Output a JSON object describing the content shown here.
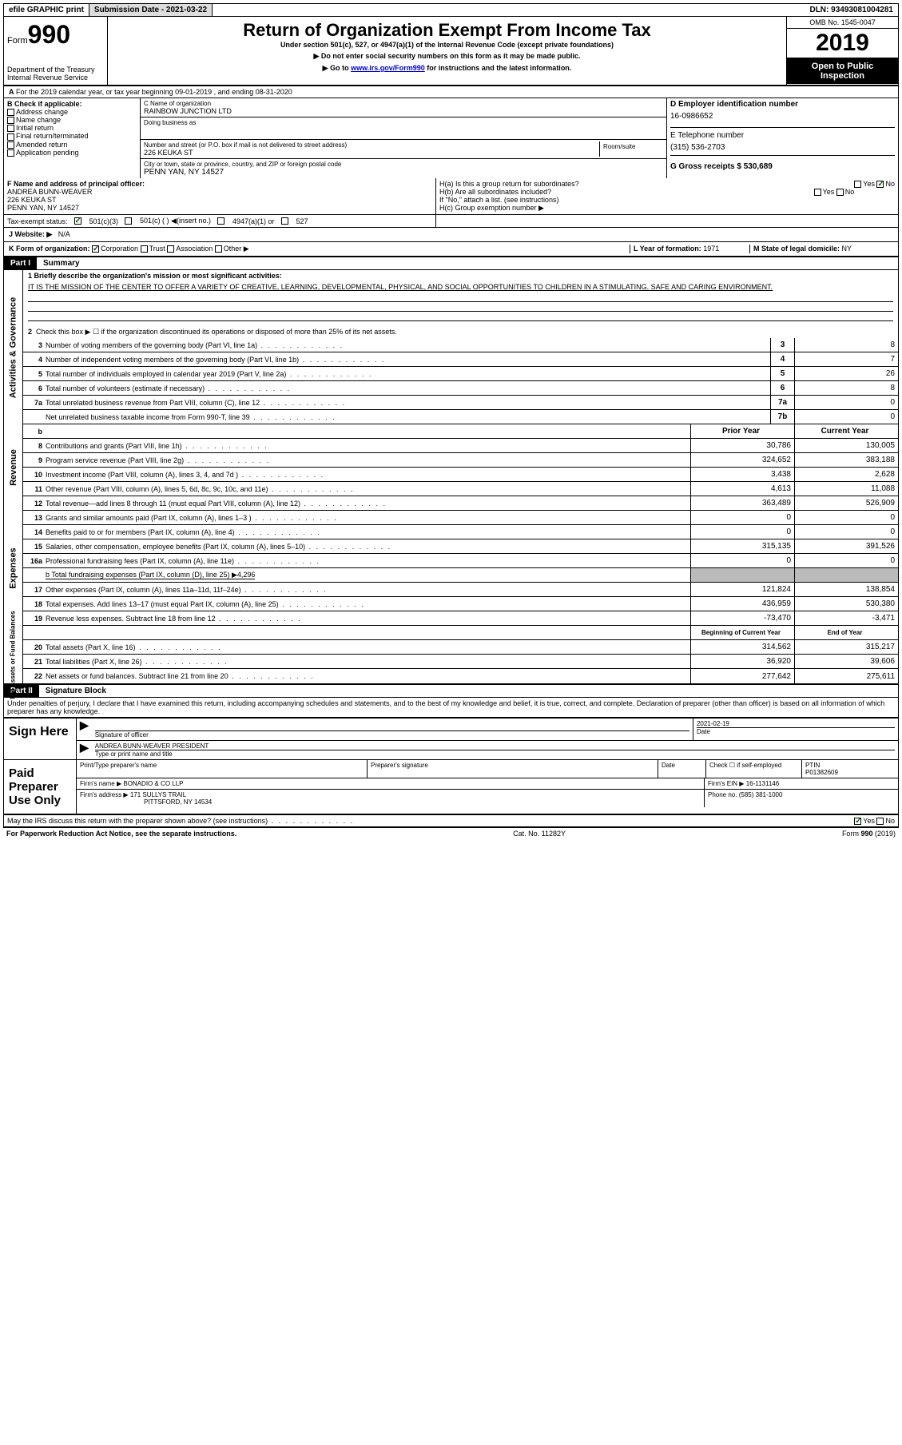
{
  "top": {
    "efile": "efile GRAPHIC print",
    "submission": "Submission Date - 2021-03-22",
    "dln": "DLN: 93493081004281"
  },
  "header": {
    "form_label": "Form",
    "form_num": "990",
    "dept": "Department of the Treasury",
    "irs": "Internal Revenue Service",
    "title": "Return of Organization Exempt From Income Tax",
    "sub1": "Under section 501(c), 527, or 4947(a)(1) of the Internal Revenue Code (except private foundations)",
    "sub2": "▶ Do not enter social security numbers on this form as it may be made public.",
    "sub3_a": "▶ Go to ",
    "sub3_link": "www.irs.gov/Form990",
    "sub3_b": " for instructions and the latest information.",
    "omb": "OMB No. 1545-0047",
    "year": "2019",
    "open": "Open to Public Inspection"
  },
  "line_a": "For the 2019 calendar year, or tax year beginning 09-01-2019    , and ending 08-31-2020",
  "box_b": {
    "title": "B Check if applicable:",
    "opts": [
      "Address change",
      "Name change",
      "Initial return",
      "Final return/terminated",
      "Amended return",
      "Application pending"
    ]
  },
  "box_c": {
    "name_lbl": "C Name of organization",
    "name": "RAINBOW JUNCTION LTD",
    "dba_lbl": "Doing business as",
    "addr_lbl": "Number and street (or P.O. box if mail is not delivered to street address)",
    "room_lbl": "Room/suite",
    "addr": "226 KEUKA ST",
    "city_lbl": "City or town, state or province, country, and ZIP or foreign postal code",
    "city": "PENN YAN, NY  14527"
  },
  "box_d": {
    "lbl": "D Employer identification number",
    "val": "16-0986652"
  },
  "box_e": {
    "lbl": "E Telephone number",
    "val": "(315) 536-2703"
  },
  "box_g": {
    "lbl": "G Gross receipts $",
    "val": "530,689"
  },
  "box_f": {
    "lbl": "F  Name and address of principal officer:",
    "name": "ANDREA BUNN-WEAVER",
    "addr1": "226 KEUKA ST",
    "addr2": "PENN YAN, NY  14527"
  },
  "box_h": {
    "ha": "H(a)  Is this a group return for subordinates?",
    "hb": "H(b)  Are all subordinates included?",
    "hb_note": "If \"No,\" attach a list. (see instructions)",
    "hc": "H(c)  Group exemption number ▶"
  },
  "tax_status": {
    "lbl": "Tax-exempt status:",
    "o1": "501(c)(3)",
    "o2": "501(c) (  ) ◀(insert no.)",
    "o3": "4947(a)(1) or",
    "o4": "527"
  },
  "box_j": {
    "lbl": "J   Website: ▶",
    "val": "N/A"
  },
  "box_k": "K Form of organization:",
  "k_opts": [
    "Corporation",
    "Trust",
    "Association",
    "Other ▶"
  ],
  "box_l": {
    "lbl": "L Year of formation:",
    "val": "1971"
  },
  "box_m": {
    "lbl": "M State of legal domicile:",
    "val": "NY"
  },
  "part1": {
    "hdr": "Part I",
    "title": "Summary"
  },
  "mission": {
    "lbl": "1   Briefly describe the organization's mission or most significant activities:",
    "txt": "IT IS THE MISSION OF THE CENTER TO OFFER A VARIETY OF CREATIVE, LEARNING, DEVELOPMENTAL, PHYSICAL, AND SOCIAL OPPORTUNITIES TO CHILDREN IN A STIMULATING, SAFE AND CARING ENVIRONMENT."
  },
  "line2": "Check this box ▶ ☐  if the organization discontinued its operations or disposed of more than 25% of its net assets.",
  "sections": {
    "ag": "Activities & Governance",
    "rev": "Revenue",
    "exp": "Expenses",
    "na": "Net Assets or Fund Balances"
  },
  "ag_lines": [
    {
      "n": "3",
      "t": "Number of voting members of the governing body (Part VI, line 1a)",
      "b": "3",
      "v": "8"
    },
    {
      "n": "4",
      "t": "Number of independent voting members of the governing body (Part VI, line 1b)",
      "b": "4",
      "v": "7"
    },
    {
      "n": "5",
      "t": "Total number of individuals employed in calendar year 2019 (Part V, line 2a)",
      "b": "5",
      "v": "26"
    },
    {
      "n": "6",
      "t": "Total number of volunteers (estimate if necessary)",
      "b": "6",
      "v": "8"
    },
    {
      "n": "7a",
      "t": "Total unrelated business revenue from Part VIII, column (C), line 12",
      "b": "7a",
      "v": "0"
    },
    {
      "n": "",
      "t": "Net unrelated business taxable income from Form 990-T, line 39",
      "b": "7b",
      "v": "0"
    }
  ],
  "col_hdrs": {
    "py": "Prior Year",
    "cy": "Current Year"
  },
  "rev_lines": [
    {
      "n": "8",
      "t": "Contributions and grants (Part VIII, line 1h)",
      "py": "30,786",
      "cy": "130,005"
    },
    {
      "n": "9",
      "t": "Program service revenue (Part VIII, line 2g)",
      "py": "324,652",
      "cy": "383,188"
    },
    {
      "n": "10",
      "t": "Investment income (Part VIII, column (A), lines 3, 4, and 7d )",
      "py": "3,438",
      "cy": "2,628"
    },
    {
      "n": "11",
      "t": "Other revenue (Part VIII, column (A), lines 5, 6d, 8c, 9c, 10c, and 11e)",
      "py": "4,613",
      "cy": "11,088"
    },
    {
      "n": "12",
      "t": "Total revenue—add lines 8 through 11 (must equal Part VIII, column (A), line 12)",
      "py": "363,489",
      "cy": "526,909"
    }
  ],
  "exp_lines": [
    {
      "n": "13",
      "t": "Grants and similar amounts paid (Part IX, column (A), lines 1–3 )",
      "py": "0",
      "cy": "0"
    },
    {
      "n": "14",
      "t": "Benefits paid to or for members (Part IX, column (A), line 4)",
      "py": "0",
      "cy": "0"
    },
    {
      "n": "15",
      "t": "Salaries, other compensation, employee benefits (Part IX, column (A), lines 5–10)",
      "py": "315,135",
      "cy": "391,526"
    },
    {
      "n": "16a",
      "t": "Professional fundraising fees (Part IX, column (A), line 11e)",
      "py": "0",
      "cy": "0"
    }
  ],
  "line16b": "b   Total fundraising expenses (Part IX, column (D), line 25) ▶4,296",
  "exp_lines2": [
    {
      "n": "17",
      "t": "Other expenses (Part IX, column (A), lines 11a–11d, 11f–24e)",
      "py": "121,824",
      "cy": "138,854"
    },
    {
      "n": "18",
      "t": "Total expenses. Add lines 13–17 (must equal Part IX, column (A), line 25)",
      "py": "436,959",
      "cy": "530,380"
    },
    {
      "n": "19",
      "t": "Revenue less expenses. Subtract line 18 from line 12",
      "py": "-73,470",
      "cy": "-3,471"
    }
  ],
  "na_hdrs": {
    "py": "Beginning of Current Year",
    "cy": "End of Year"
  },
  "na_lines": [
    {
      "n": "20",
      "t": "Total assets (Part X, line 16)",
      "py": "314,562",
      "cy": "315,217"
    },
    {
      "n": "21",
      "t": "Total liabilities (Part X, line 26)",
      "py": "36,920",
      "cy": "39,606"
    },
    {
      "n": "22",
      "t": "Net assets or fund balances. Subtract line 21 from line 20",
      "py": "277,642",
      "cy": "275,611"
    }
  ],
  "part2": {
    "hdr": "Part II",
    "title": "Signature Block"
  },
  "perjury": "Under penalties of perjury, I declare that I have examined this return, including accompanying schedules and statements, and to the best of my knowledge and belief, it is true, correct, and complete. Declaration of preparer (other than officer) is based on all information of which preparer has any knowledge.",
  "sign": {
    "here": "Sign Here",
    "sig_lbl": "Signature of officer",
    "date_lbl": "Date",
    "date": "2021-02-19",
    "name": "ANDREA BUNN-WEAVER  PRESIDENT",
    "name_lbl": "Type or print name and title"
  },
  "paid": {
    "lbl": "Paid Preparer Use Only",
    "c1": "Print/Type preparer's name",
    "c2": "Preparer's signature",
    "c3": "Date",
    "c4": "Check ☐ if self-employed",
    "ptin_lbl": "PTIN",
    "ptin": "P01382609",
    "firm_lbl": "Firm's name    ▶",
    "firm": "BONADIO & CO LLP",
    "ein_lbl": "Firm's EIN ▶",
    "ein": "16-1131146",
    "addr_lbl": "Firm's address ▶",
    "addr1": "171 SULLYS TRAIL",
    "addr2": "PITTSFORD, NY  14534",
    "phone_lbl": "Phone no.",
    "phone": "(585) 381-1000"
  },
  "discuss": "May the IRS discuss this return with the preparer shown above? (see instructions)",
  "footer": {
    "l": "For Paperwork Reduction Act Notice, see the separate instructions.",
    "c": "Cat. No. 11282Y",
    "r": "Form 990 (2019)"
  }
}
